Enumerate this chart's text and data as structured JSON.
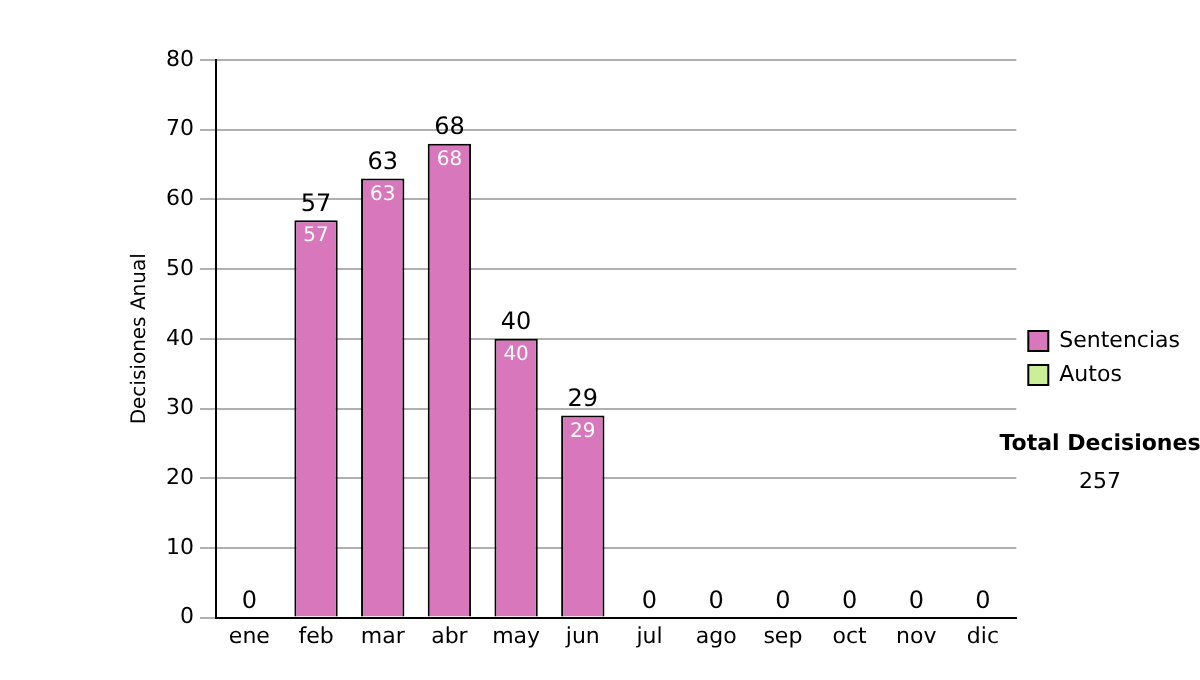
{
  "chart_data": {
    "type": "bar",
    "stacked": true,
    "categories": [
      "ene",
      "feb",
      "mar",
      "abr",
      "may",
      "jun",
      "jul",
      "ago",
      "sep",
      "oct",
      "nov",
      "dic"
    ],
    "series": [
      {
        "name": "Sentencias",
        "color": "#d977bd",
        "values": [
          0,
          57,
          63,
          68,
          40,
          29,
          0,
          0,
          0,
          0,
          0,
          0
        ],
        "value_labels": [
          null,
          "57",
          "63",
          "68",
          "40",
          "29",
          null,
          null,
          null,
          null,
          null,
          null
        ]
      },
      {
        "name": "Autos",
        "color": "#ccee99",
        "values": [
          0,
          0,
          0,
          0,
          0,
          0,
          0,
          0,
          0,
          0,
          0,
          0
        ]
      }
    ],
    "totals": [
      "0",
      "57",
      "63",
      "68",
      "40",
      "29",
      "0",
      "0",
      "0",
      "0",
      "0",
      "0"
    ],
    "ylabel": "Decisiones Anual",
    "ylim": [
      0,
      80
    ],
    "yticks": [
      0,
      10,
      20,
      30,
      40,
      50,
      60,
      70,
      80
    ],
    "grid": "y",
    "legend": "right",
    "annotations": [
      "Total Decisiones",
      "257"
    ]
  }
}
